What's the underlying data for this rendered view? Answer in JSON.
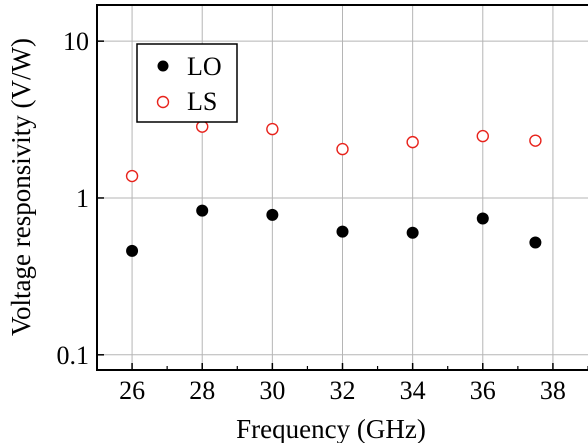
{
  "chart_data": {
    "type": "scatter",
    "xlabel": "Frequency (GHz)",
    "ylabel": "Voltage responsivity (V/W)",
    "xlim": [
      25,
      39
    ],
    "ylim": [
      0.08,
      17
    ],
    "yscale": "log",
    "grid": true,
    "x_ticks": [
      26,
      28,
      30,
      32,
      34,
      36,
      38
    ],
    "y_ticks": [
      {
        "value": 0.1,
        "label": "0.1"
      },
      {
        "value": 1,
        "label": "1"
      },
      {
        "value": 10,
        "label": "10"
      }
    ],
    "legend_position": "top-left",
    "series": [
      {
        "name": "LO",
        "marker": "filled-circle",
        "color": "#000000",
        "points": [
          {
            "x": 26,
            "y": 0.46
          },
          {
            "x": 28,
            "y": 0.83
          },
          {
            "x": 30,
            "y": 0.78
          },
          {
            "x": 32,
            "y": 0.61
          },
          {
            "x": 34,
            "y": 0.6
          },
          {
            "x": 36,
            "y": 0.74
          },
          {
            "x": 37.5,
            "y": 0.52
          }
        ]
      },
      {
        "name": "LS",
        "marker": "open-circle",
        "color": "#e8231c",
        "points": [
          {
            "x": 26,
            "y": 1.38
          },
          {
            "x": 28,
            "y": 2.85
          },
          {
            "x": 30,
            "y": 2.75
          },
          {
            "x": 32,
            "y": 2.05
          },
          {
            "x": 34,
            "y": 2.27
          },
          {
            "x": 36,
            "y": 2.48
          },
          {
            "x": 37.5,
            "y": 2.32
          }
        ]
      }
    ]
  }
}
